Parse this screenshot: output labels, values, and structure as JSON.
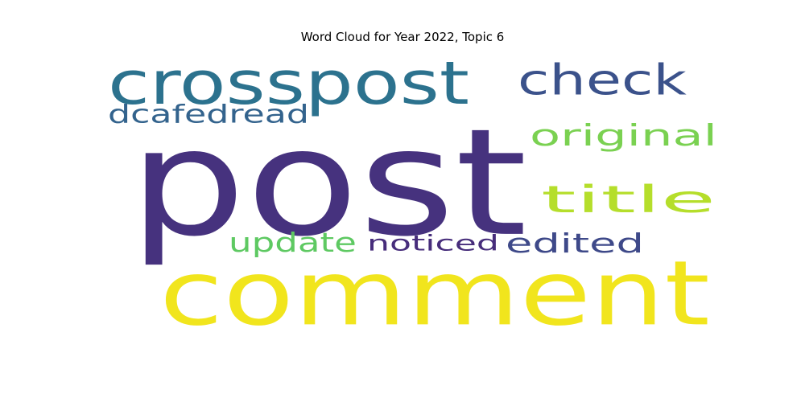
{
  "chart_data": {
    "type": "wordcloud",
    "title": "Word Cloud for Year 2022, Topic 6",
    "grid": false,
    "axes": false,
    "words": [
      {
        "text": "post",
        "weight": 1.0,
        "color": "#46327e"
      },
      {
        "text": "comment",
        "weight": 0.86,
        "color": "#f1e51d"
      },
      {
        "text": "crosspost",
        "weight": 0.42,
        "color": "#2c728e"
      },
      {
        "text": "check",
        "weight": 0.36,
        "color": "#3b528b"
      },
      {
        "text": "title",
        "weight": 0.32,
        "color": "#b5de2b"
      },
      {
        "text": "original",
        "weight": 0.26,
        "color": "#7ad151"
      },
      {
        "text": "edited",
        "weight": 0.24,
        "color": "#3e4989"
      },
      {
        "text": "dcafedread",
        "weight": 0.2,
        "color": "#33638d"
      },
      {
        "text": "update",
        "weight": 0.2,
        "color": "#5ec962"
      },
      {
        "text": "noticed",
        "weight": 0.19,
        "color": "#472d7b"
      }
    ]
  }
}
